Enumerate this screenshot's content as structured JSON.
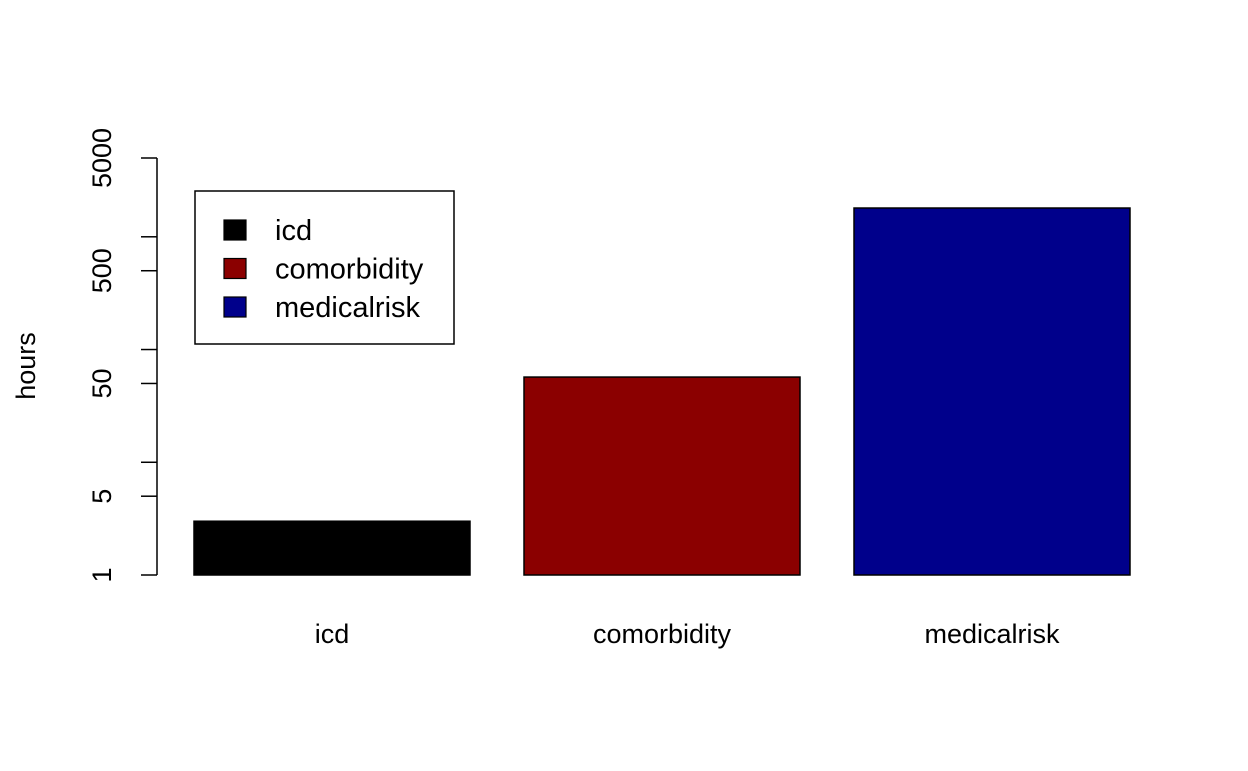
{
  "chart_data": {
    "type": "bar",
    "title": "",
    "xlabel": "",
    "ylabel": "hours",
    "yscale": "log",
    "ylim": [
      1,
      5000
    ],
    "yticks": [
      1,
      5,
      10,
      50,
      100,
      500,
      1000,
      5000
    ],
    "yticklabels": [
      "1",
      "5",
      "",
      "50",
      "",
      "500",
      "",
      "5000"
    ],
    "categories": [
      "icd",
      "comorbidity",
      "medicalrisk"
    ],
    "values": [
      3,
      57,
      1800
    ],
    "colors": [
      "#000000",
      "#8b0000",
      "#00008b"
    ],
    "grid": false,
    "legend": {
      "placement": "top-left",
      "entries": [
        "icd",
        "comorbidity",
        "medicalrisk"
      ]
    }
  }
}
